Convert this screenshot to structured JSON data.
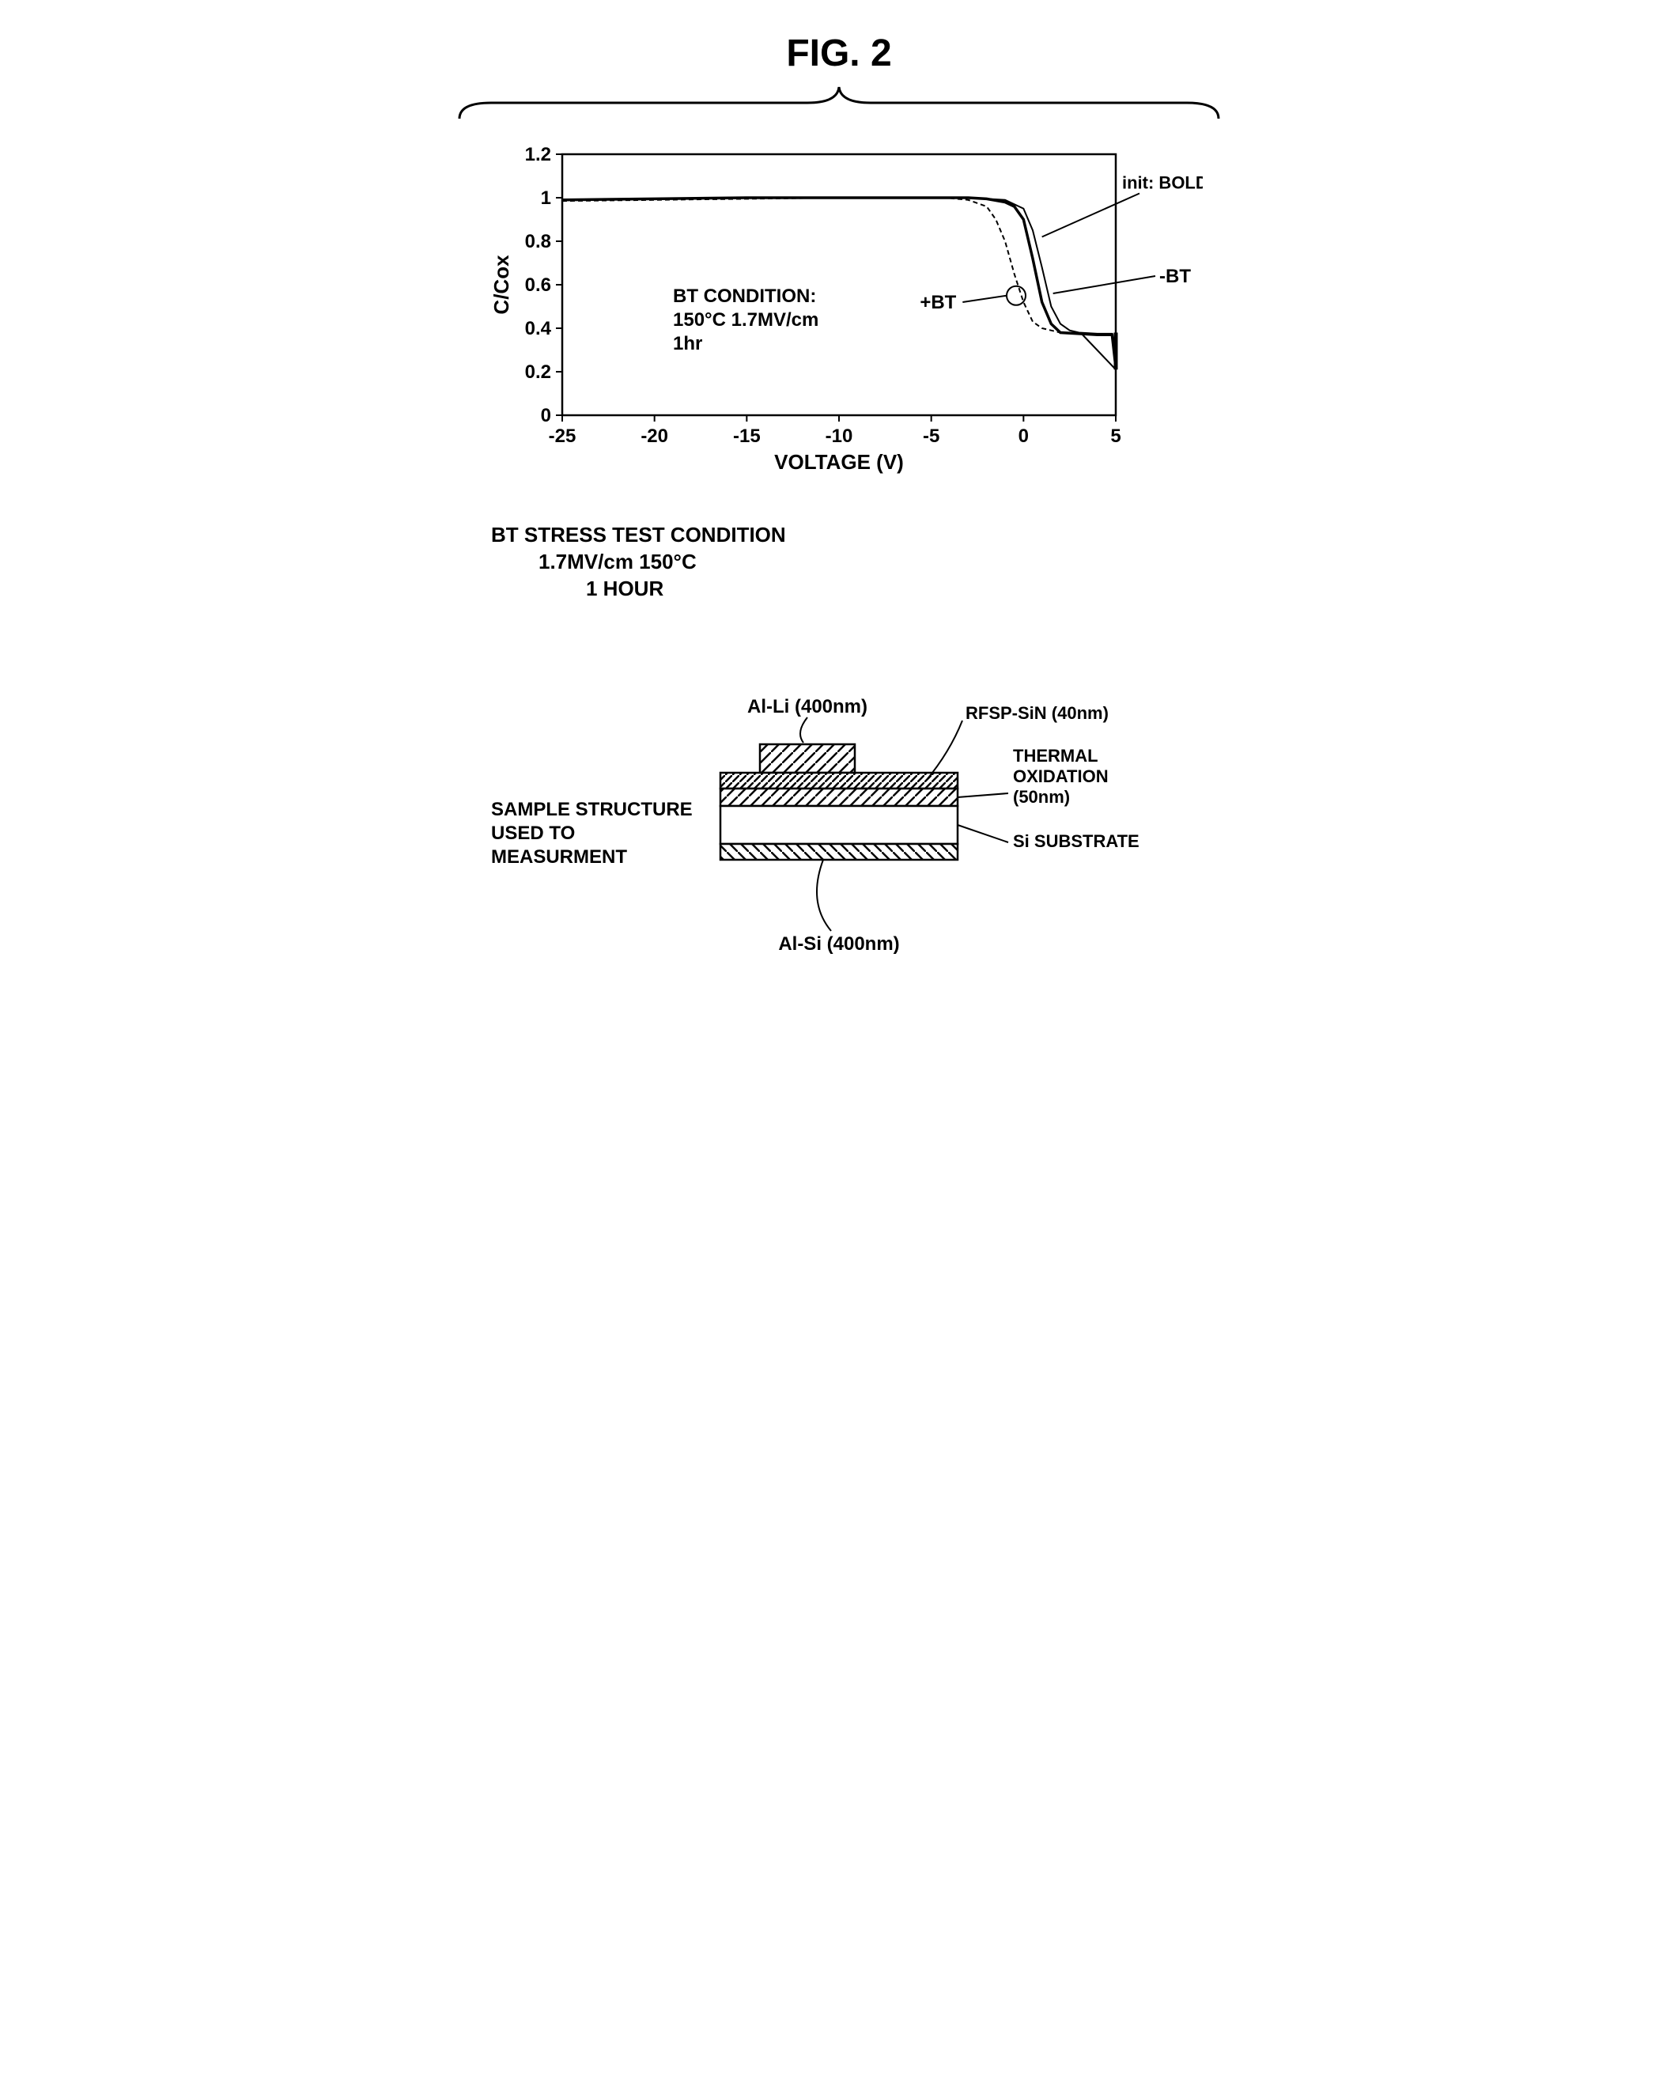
{
  "figure": {
    "title": "FIG. 2"
  },
  "chart": {
    "type": "line",
    "xlabel": "VOLTAGE (V)",
    "ylabel": "C/Cox",
    "xlim": [
      -25,
      5
    ],
    "ylim": [
      0,
      1.2
    ],
    "xticks": [
      -25,
      -20,
      -15,
      -10,
      -5,
      0,
      5
    ],
    "yticks": [
      0,
      0.2,
      0.4,
      0.6,
      0.8,
      1,
      1.2
    ],
    "inset_text": [
      "BT CONDITION:",
      "150°C 1.7MV/cm",
      "1hr"
    ],
    "annotations": {
      "init": "init: BOLDLINE",
      "minus_bt": "-BT",
      "plus_bt": "+BT"
    },
    "series": {
      "init": {
        "label": "init",
        "line_width": 3.5,
        "dash": "none",
        "color": "#000000",
        "x": [
          -25,
          -20,
          -15,
          -10,
          -5,
          -3,
          -2,
          -1,
          -0.5,
          0,
          0.5,
          1,
          1.5,
          2,
          3,
          4,
          4.8,
          5
        ],
        "y": [
          0.99,
          0.995,
          1.0,
          1.0,
          1.0,
          1.0,
          0.995,
          0.98,
          0.96,
          0.9,
          0.72,
          0.52,
          0.42,
          0.38,
          0.375,
          0.37,
          0.37,
          0.22
        ]
      },
      "minus_bt": {
        "label": "-BT",
        "line_width": 2,
        "dash": "none",
        "color": "#000000",
        "x": [
          -25,
          -20,
          -15,
          -10,
          -5,
          -3,
          -2,
          -1,
          0,
          0.5,
          1,
          1.5,
          2,
          2.5,
          3,
          4,
          4.8,
          5
        ],
        "y": [
          0.99,
          0.995,
          1.0,
          1.0,
          1.0,
          1.0,
          0.995,
          0.99,
          0.95,
          0.85,
          0.68,
          0.5,
          0.42,
          0.39,
          0.38,
          0.375,
          0.375,
          0.24
        ]
      },
      "plus_bt": {
        "label": "+BT",
        "line_width": 2,
        "dash": "6,4",
        "color": "#000000",
        "x": [
          -25,
          -20,
          -15,
          -10,
          -5,
          -4,
          -3,
          -2,
          -1.5,
          -1,
          -0.5,
          0,
          0.5,
          1,
          2,
          3,
          4,
          4.8,
          5
        ],
        "y": [
          0.985,
          0.99,
          0.995,
          1.0,
          1.0,
          0.998,
          0.99,
          0.96,
          0.9,
          0.8,
          0.65,
          0.52,
          0.43,
          0.4,
          0.38,
          0.375,
          0.37,
          0.37,
          0.23
        ]
      }
    },
    "title_fontsize": 26,
    "label_fontsize": 26,
    "tick_fontsize": 24,
    "background_color": "#ffffff",
    "axis_color": "#000000",
    "axis_line_width": 2.5
  },
  "caption_below_chart": {
    "line1": "BT STRESS TEST CONDITION",
    "line2": "1.7MV/cm 150°C",
    "line3": "1 HOUR"
  },
  "diagram": {
    "left_caption": [
      "SAMPLE STRUCTURE",
      "USED TO",
      "MEASURMENT"
    ],
    "layers": [
      {
        "name": "Al-Li (400nm)",
        "hatch": "diag",
        "color": "#000000"
      },
      {
        "name": "RFSP-SiN (40nm)",
        "hatch": "diag-dense",
        "color": "#000000"
      },
      {
        "name": "THERMAL OXIDATION (50nm)",
        "hatch": "diag",
        "color": "#000000",
        "label_lines": [
          "THERMAL",
          "OXIDATION",
          "(50nm)"
        ]
      },
      {
        "name": "Si SUBSTRATE",
        "hatch": "none",
        "color": "#000000"
      },
      {
        "name": "Al-Si (400nm)",
        "hatch": "diag-rev",
        "color": "#000000"
      }
    ],
    "label_fontsize": 24,
    "line_width": 2.5
  }
}
